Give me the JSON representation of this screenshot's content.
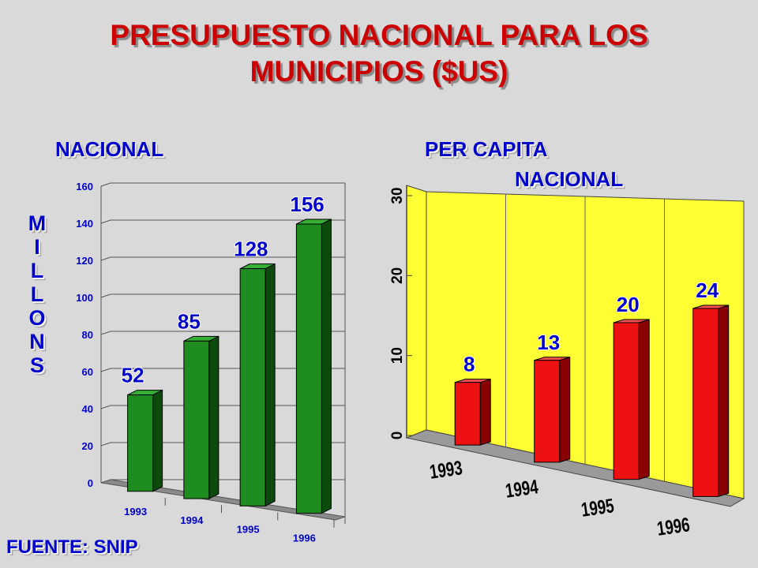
{
  "title": {
    "line1": "PRESUPUESTO NACIONAL PARA LOS",
    "line2": "MUNICIPIOS ($US)"
  },
  "source": "FUENTE: SNIP",
  "chart_data": [
    {
      "type": "bar",
      "title": "NACIONAL",
      "ylabel": "MILLONS",
      "categories": [
        "1993",
        "1994",
        "1995",
        "1996"
      ],
      "values": [
        52,
        85,
        128,
        156
      ],
      "data_labels": [
        "52",
        "85",
        "128",
        "156"
      ],
      "ylim": [
        0,
        160
      ],
      "yticks": [
        "0",
        "20",
        "40",
        "60",
        "80",
        "100",
        "120",
        "140",
        "160"
      ],
      "grid": true,
      "colors": {
        "bar_front": "#1e8c1e",
        "bar_side": "#0d4a0d",
        "bar_top": "#35b035",
        "plot_bg": "#d9d9d9",
        "label": "#0000cc"
      }
    },
    {
      "type": "bar",
      "title": "PER CAPITA NACIONAL",
      "title_line1": "PER CAPITA",
      "title_line2": "NACIONAL",
      "categories": [
        "1993",
        "1994",
        "1995",
        "1996"
      ],
      "values": [
        8,
        13,
        20,
        24
      ],
      "data_labels": [
        "8",
        "13",
        "20",
        "24"
      ],
      "ylim": [
        0,
        30
      ],
      "yticks": [
        "0",
        "10",
        "20",
        "30"
      ],
      "grid": true,
      "colors": {
        "bar_front": "#ee1111",
        "bar_side": "#8a0000",
        "bar_top": "#ff5050",
        "plot_bg": "#ffff33",
        "label": "#0000cc"
      }
    }
  ]
}
